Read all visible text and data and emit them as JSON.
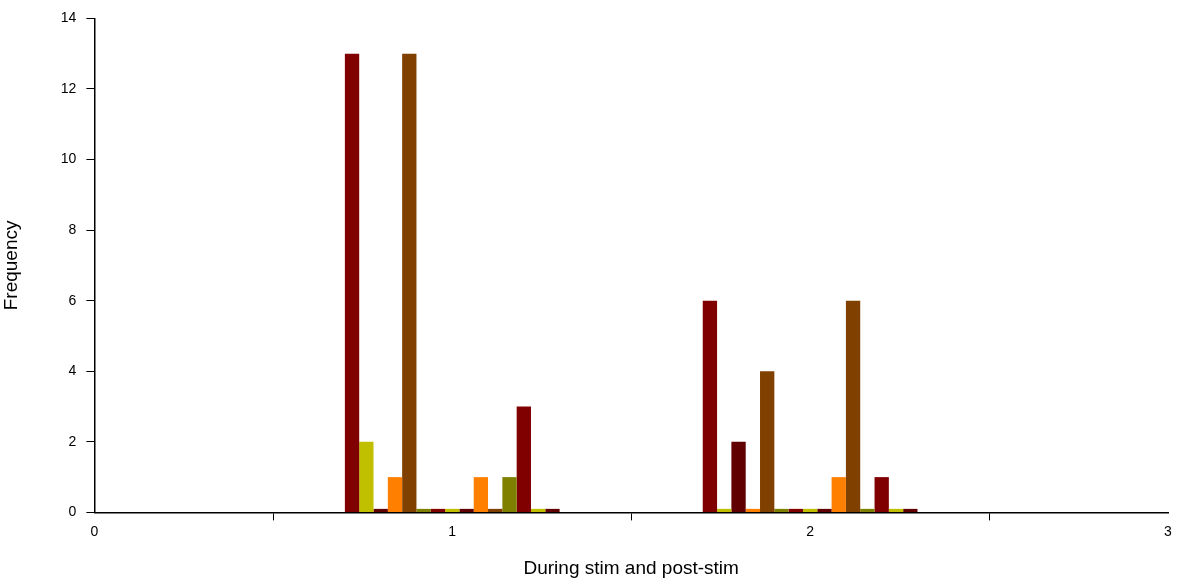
{
  "chart_data": {
    "type": "bar",
    "xlabel": "During stim and post-stim",
    "ylabel": "Frequency",
    "x": [
      1,
      2
    ],
    "xlim": [
      0,
      3
    ],
    "xticks": [
      0,
      1,
      2,
      3
    ],
    "ylim": [
      0,
      14
    ],
    "yticks": [
      0,
      2,
      4,
      6,
      8,
      10,
      12,
      14
    ],
    "grid": false,
    "legend": false,
    "series": [
      {
        "color": "#800000",
        "values": [
          13,
          6
        ]
      },
      {
        "color": "#c0c000",
        "values": [
          2,
          0.1
        ]
      },
      {
        "color": "#600000",
        "values": [
          0.1,
          2
        ]
      },
      {
        "color": "#ff8000",
        "values": [
          1,
          0.1
        ]
      },
      {
        "color": "#804000",
        "values": [
          13,
          4
        ]
      },
      {
        "color": "#808000",
        "values": [
          0.1,
          0.1
        ]
      },
      {
        "color": "#800000",
        "values": [
          0.1,
          0.1
        ]
      },
      {
        "color": "#c0c000",
        "values": [
          0.1,
          0.1
        ]
      },
      {
        "color": "#600000",
        "values": [
          0.1,
          0.1
        ]
      },
      {
        "color": "#ff8000",
        "values": [
          1,
          1
        ]
      },
      {
        "color": "#804000",
        "values": [
          0.1,
          6
        ]
      },
      {
        "color": "#808000",
        "values": [
          1,
          0.1
        ]
      },
      {
        "color": "#800000",
        "values": [
          3,
          1
        ]
      },
      {
        "color": "#c0c000",
        "values": [
          0.1,
          0.1
        ]
      },
      {
        "color": "#600000",
        "values": [
          0.1,
          0.1
        ]
      }
    ]
  }
}
